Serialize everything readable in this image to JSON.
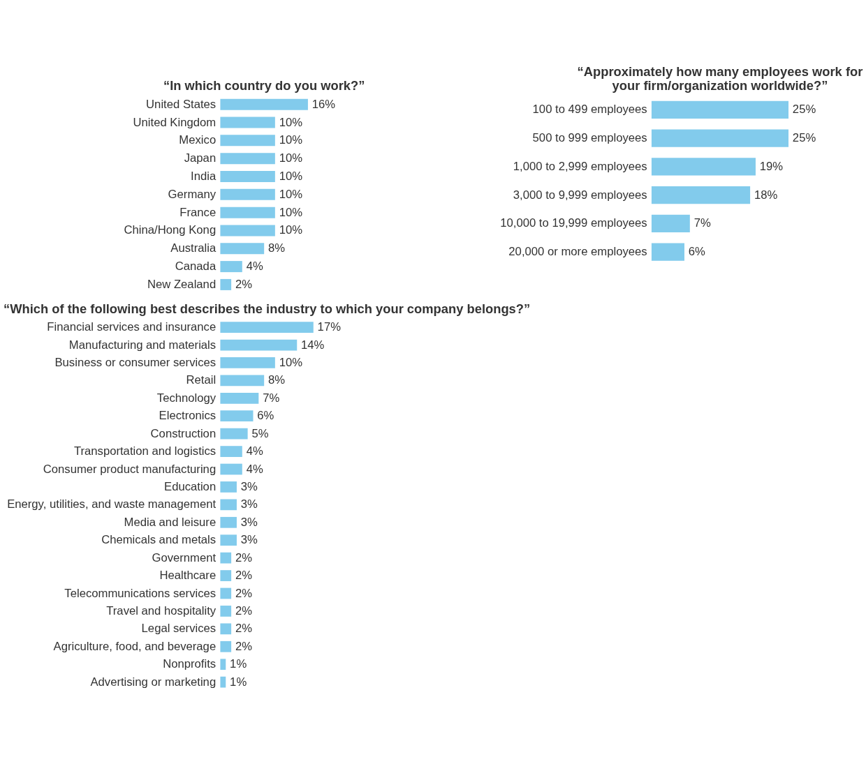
{
  "chart_data": [
    {
      "type": "bar",
      "orientation": "horizontal",
      "title": "“In which country do you work?”",
      "categories": [
        "United States",
        "United Kingdom",
        "Mexico",
        "Japan",
        "India",
        "Germany",
        "France",
        "China/Hong Kong",
        "Australia",
        "Canada",
        "New Zealand"
      ],
      "values": [
        16,
        10,
        10,
        10,
        10,
        10,
        10,
        10,
        8,
        4,
        2
      ],
      "value_labels": [
        "16%",
        "10%",
        "10%",
        "10%",
        "10%",
        "10%",
        "10%",
        "10%",
        "8%",
        "4%",
        "2%"
      ],
      "color": "#82cbec"
    },
    {
      "type": "bar",
      "orientation": "horizontal",
      "title": "“Approximately how many employees work for your firm/organization worldwide?”",
      "categories": [
        "100 to 499 employees",
        "500 to 999 employees",
        "1,000 to 2,999 employees",
        "3,000 to 9,999 employees",
        "10,000 to 19,999 employees",
        "20,000 or more employees"
      ],
      "values": [
        25,
        25,
        19,
        18,
        7,
        6
      ],
      "value_labels": [
        "25%",
        "25%",
        "19%",
        "18%",
        "7%",
        "6%"
      ],
      "color": "#82cbec"
    },
    {
      "type": "bar",
      "orientation": "horizontal",
      "title": "“Which of the following best describes the industry to which your company belongs?”",
      "categories": [
        "Financial services and insurance",
        "Manufacturing and materials",
        "Business or consumer services",
        "Retail",
        "Technology",
        "Electronics",
        "Construction",
        "Transportation and logistics",
        "Consumer product manufacturing",
        "Education",
        "Energy, utilities, and waste management",
        "Media and leisure",
        "Chemicals and metals",
        "Government",
        "Healthcare",
        "Telecommunications services",
        "Travel and hospitality",
        "Legal services",
        "Agriculture, food, and beverage",
        "Nonprofits",
        "Advertising or marketing"
      ],
      "values": [
        17,
        14,
        10,
        8,
        7,
        6,
        5,
        4,
        4,
        3,
        3,
        3,
        3,
        2,
        2,
        2,
        2,
        2,
        2,
        1,
        1
      ],
      "value_labels": [
        "17%",
        "14%",
        "10%",
        "8%",
        "7%",
        "6%",
        "5%",
        "4%",
        "4%",
        "3%",
        "3%",
        "3%",
        "3%",
        "2%",
        "2%",
        "2%",
        "2%",
        "2%",
        "2%",
        "1%",
        "1%"
      ],
      "color": "#82cbec"
    }
  ]
}
